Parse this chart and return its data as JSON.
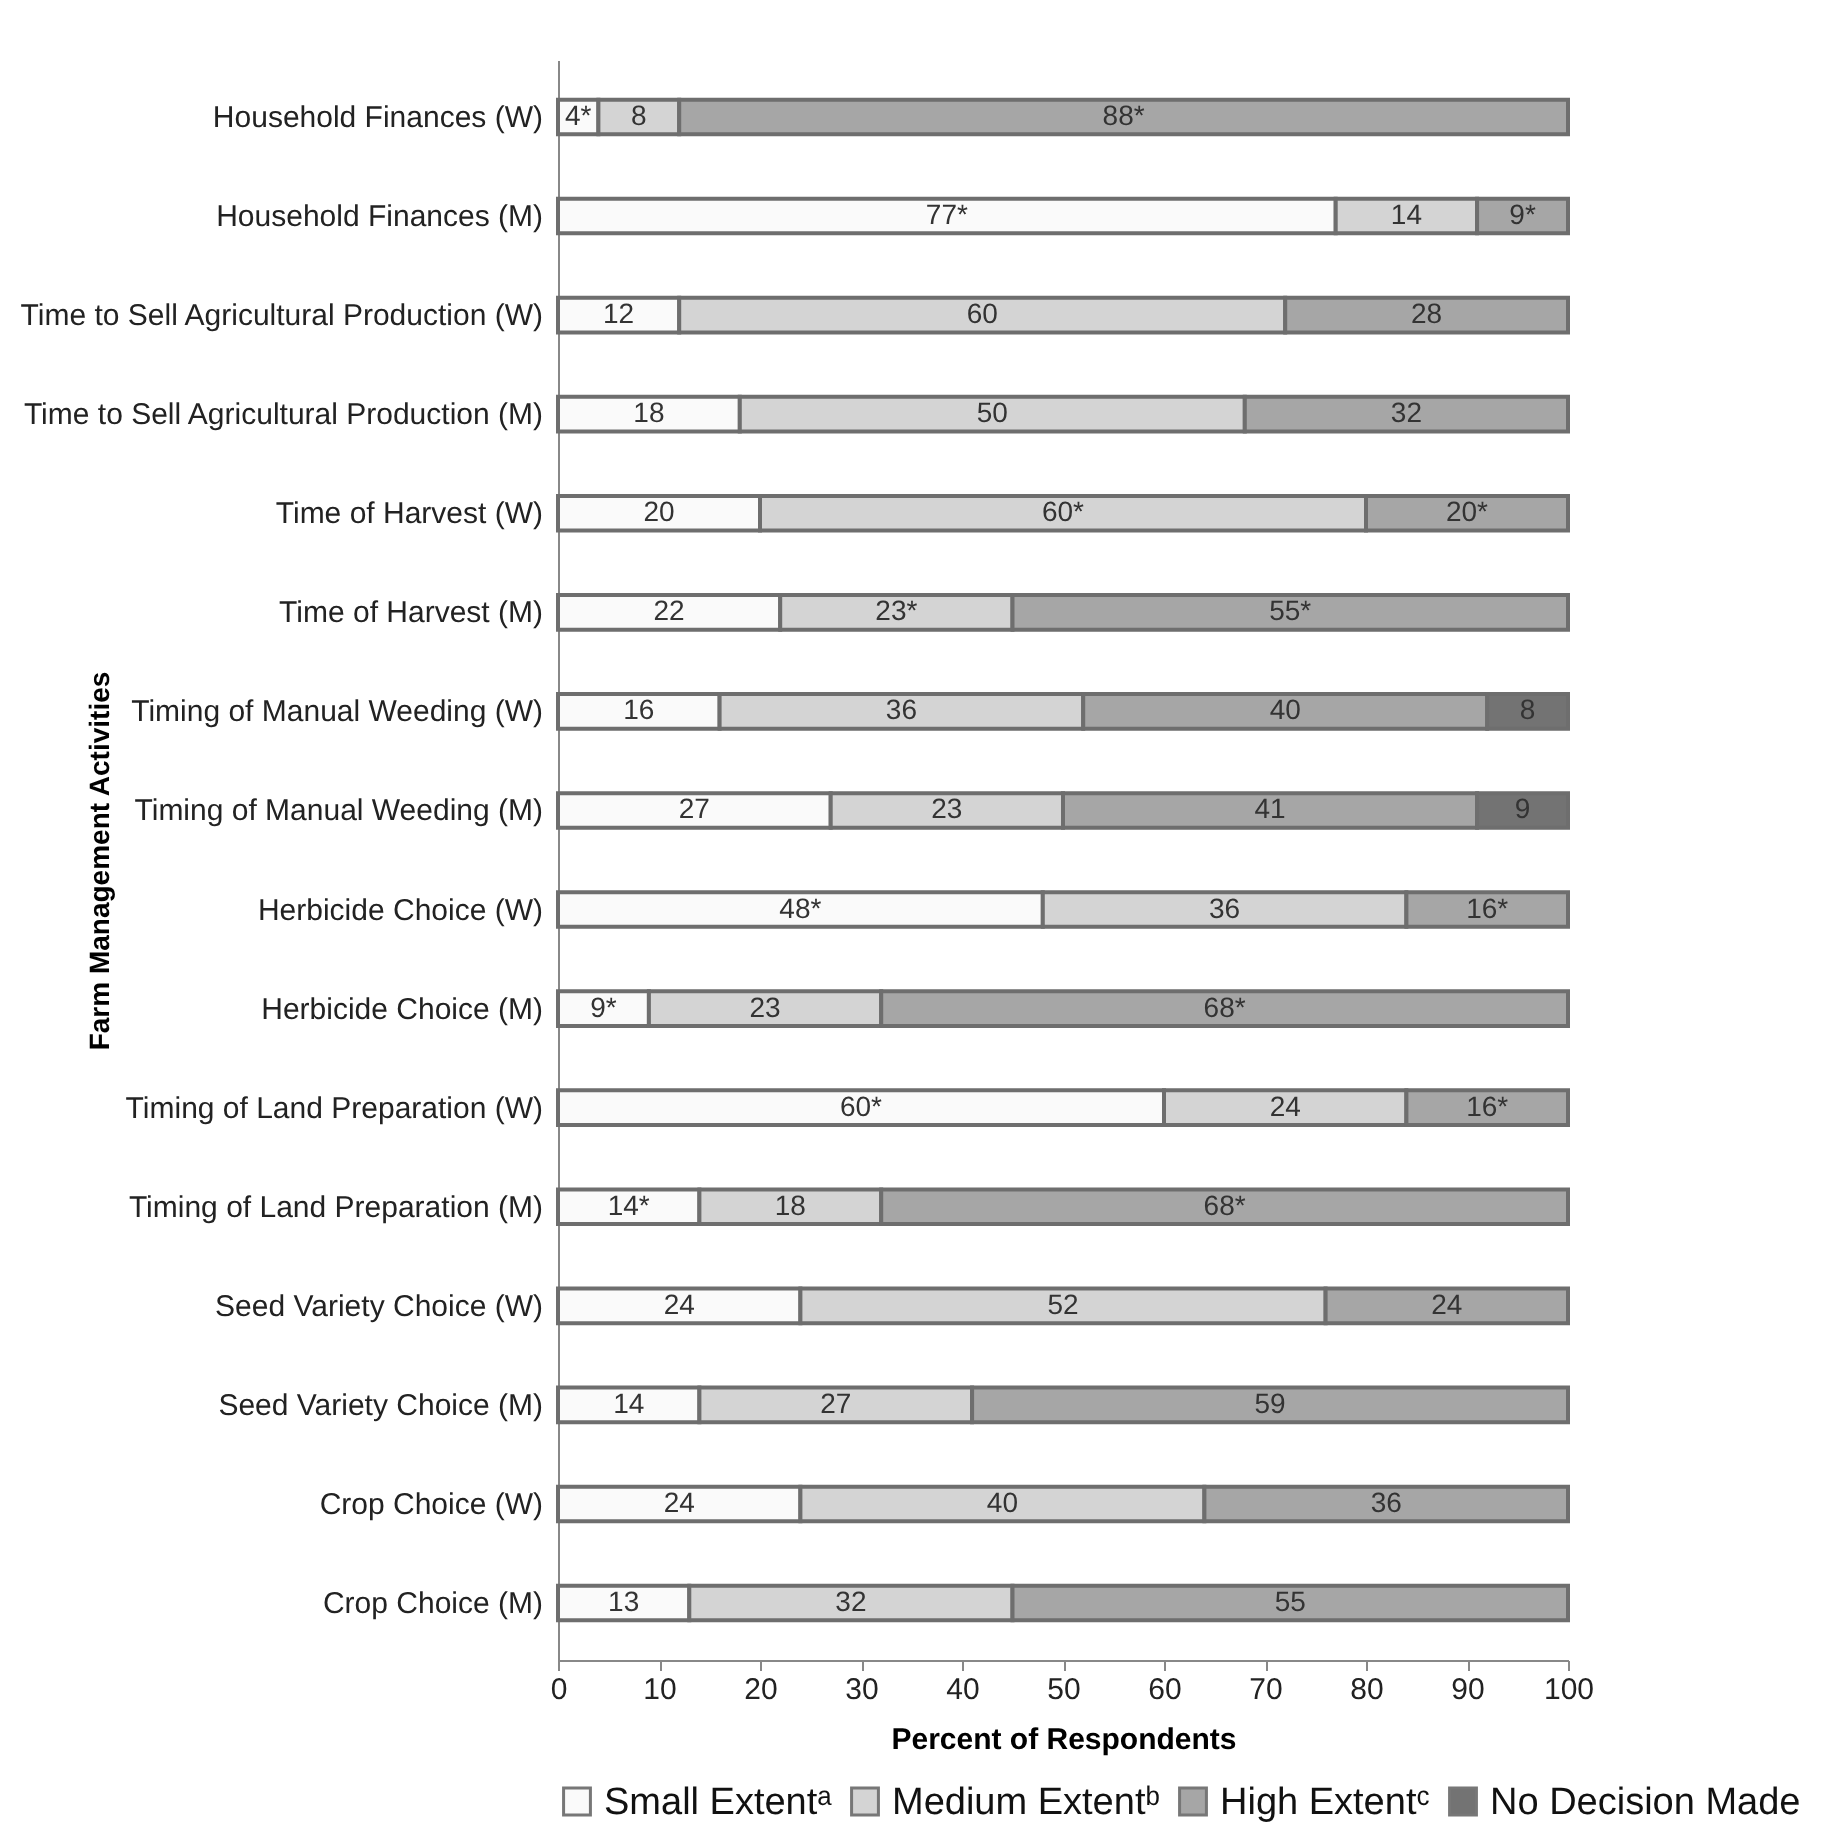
{
  "chart_data": {
    "type": "bar",
    "orientation": "horizontal",
    "stacked": true,
    "xlabel": "Percent of Respondents",
    "ylabel": "Farm Management Activities",
    "categories": [
      "Household Finances (W)",
      "Household Finances (M)",
      "Time to Sell Agricultural Production (W)",
      "Time to Sell Agricultural Production (M)",
      "Time of Harvest (W)",
      "Time of Harvest (M)",
      "Timing of Manual Weeding (W)",
      "Timing of Manual Weeding (M)",
      "Herbicide Choice (W)",
      "Herbicide Choice (M)",
      "Timing of Land Preparation (W)",
      "Timing of Land Preparation (M)",
      "Seed Variety Choice (W)",
      "Seed Variety Choice (M)",
      "Crop Choice (W)",
      "Crop Choice (M)"
    ],
    "series": [
      {
        "name": "Small Extentᵃ",
        "color": "#fafafa",
        "values": [
          4,
          77,
          12,
          18,
          20,
          22,
          16,
          27,
          48,
          9,
          60,
          14,
          24,
          14,
          24,
          13
        ],
        "value_labels": [
          "4*",
          "77*",
          "12",
          "18",
          "20",
          "22",
          "16",
          "27",
          "48*",
          "9*",
          "60*",
          "14*",
          "24",
          "14",
          "24",
          "13"
        ]
      },
      {
        "name": "Medium Extentᵇ",
        "color": "#d4d4d4",
        "values": [
          8,
          14,
          60,
          50,
          60,
          23,
          36,
          23,
          36,
          23,
          24,
          18,
          52,
          27,
          40,
          32
        ],
        "value_labels": [
          "8",
          "14",
          "60",
          "50",
          "60*",
          "23*",
          "36",
          "23",
          "36",
          "23",
          "24",
          "18",
          "52",
          "27",
          "40",
          "32"
        ]
      },
      {
        "name": "High Extentᶜ",
        "color": "#a6a6a6",
        "values": [
          88,
          9,
          28,
          32,
          20,
          55,
          40,
          41,
          16,
          68,
          16,
          68,
          24,
          59,
          36,
          55
        ],
        "value_labels": [
          "88*",
          "9*",
          "28",
          "32",
          "20*",
          "55*",
          "40",
          "41",
          "16*",
          "68*",
          "16*",
          "68*",
          "24",
          "59",
          "36",
          "55"
        ]
      },
      {
        "name": "No Decision Made",
        "color": "#737373",
        "values": [
          null,
          null,
          null,
          null,
          null,
          null,
          8,
          9,
          null,
          null,
          null,
          null,
          null,
          null,
          null,
          null
        ],
        "value_labels": [
          null,
          null,
          null,
          null,
          null,
          null,
          "8",
          "9",
          null,
          null,
          null,
          null,
          null,
          null,
          null,
          null
        ]
      }
    ],
    "xlim": [
      0,
      100
    ],
    "xticks": [
      0,
      10,
      20,
      30,
      40,
      50,
      60,
      70,
      80,
      90,
      100
    ],
    "grid": false,
    "legend": "bottom"
  }
}
